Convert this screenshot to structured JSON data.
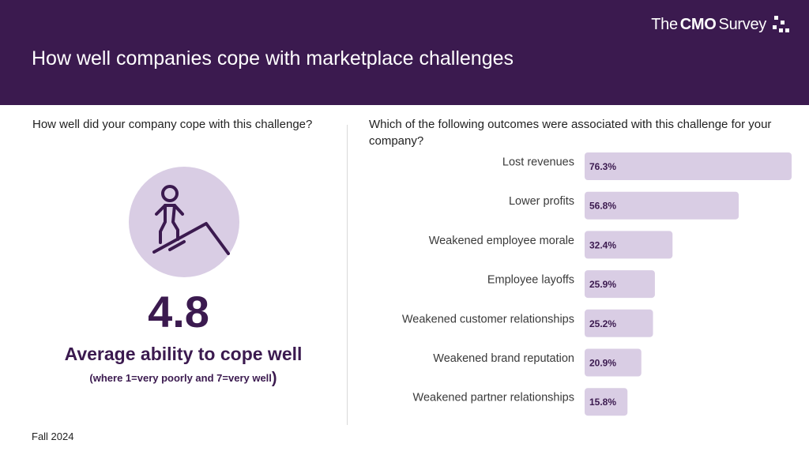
{
  "header": {
    "title": "How well companies cope with marketplace challenges",
    "logo_prefix": "The",
    "logo_bold": "CMO",
    "logo_suffix": "Survey",
    "background": "#3b1a4f"
  },
  "left_panel": {
    "question": "How well did your company cope with this challenge?",
    "icon": "person-climbing-icon",
    "score": "4.8",
    "score_label": "Average ability to cope well",
    "scale_note": "(where 1=very poorly and 7=very well",
    "scale_note_close": ")"
  },
  "right_panel": {
    "question": "Which of the following outcomes were associated with this challenge for your company?"
  },
  "chart_data": {
    "type": "bar",
    "orientation": "horizontal",
    "categories": [
      "Lost revenues",
      "Lower profits",
      "Weakened employee morale",
      "Employee layoffs",
      "Weakened customer relationships",
      "Weakened brand reputation",
      "Weakened partner relationships"
    ],
    "values": [
      76.3,
      56.8,
      32.4,
      25.9,
      25.2,
      20.9,
      15.8
    ],
    "value_labels": [
      "76.3%",
      "56.8%",
      "32.4%",
      "25.9%",
      "25.2%",
      "20.9%",
      "15.8%"
    ],
    "unit": "%",
    "bar_color": "#d9cde4",
    "label_color": "#3b1a4f",
    "grid": false,
    "legend": "none"
  },
  "footer": {
    "text": "Fall 2024"
  }
}
